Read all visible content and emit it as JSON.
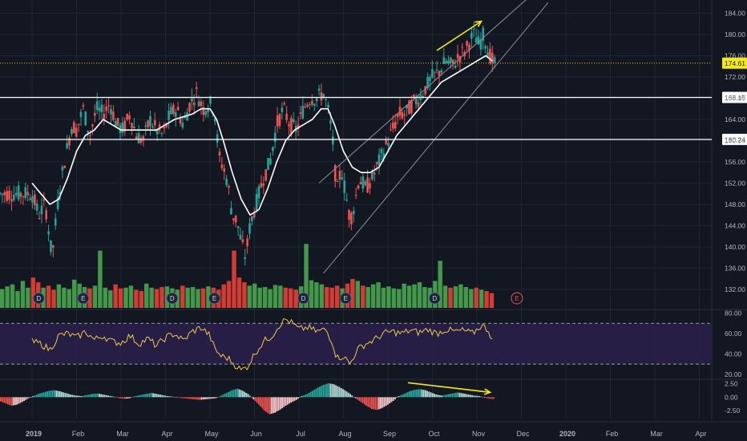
{
  "colors": {
    "background": "#131722",
    "grid": "#1e2433",
    "up": "#26a69a",
    "down": "#ef5350",
    "vol_up": "#4caf50",
    "vol_down": "#f44336",
    "ma": "#ffffff",
    "trendline": "#8a8f9c",
    "price_line": "#f0c419",
    "annotation": "#f5ea14",
    "rsi_line": "#f0c84a",
    "rsi_band": "#2a1f4a",
    "hist_pos_dark": "#26a69a",
    "hist_pos_light": "#b2dfdb",
    "hist_neg_dark": "#ef5350",
    "hist_neg_light": "#ffcdd2",
    "axis_text": "#b2b5be",
    "label_bg_white": "#ffffff",
    "label_bg_yellow": "#f5ea14"
  },
  "chart_data": [
    {
      "type": "candlestick",
      "panel": "price",
      "yticks": [
        132,
        136,
        140,
        144,
        148,
        152,
        156,
        160,
        164,
        168,
        172,
        176,
        180,
        184
      ],
      "ytick_labels": [
        "132.00",
        "136.00",
        "140.00",
        "144.00",
        "148.00",
        "152.00",
        "156.00",
        "160.00",
        "164.00",
        "168.00",
        "172.00",
        "176.00",
        "180.00",
        "184.00"
      ],
      "ylim": [
        128.5,
        186.5
      ],
      "xaxis_labels": [
        "2019",
        "Feb",
        "Mar",
        "Apr",
        "May",
        "Jun",
        "Jul",
        "Aug",
        "Sep",
        "Oct",
        "Nov",
        "Dec",
        "2020",
        "Feb",
        "Mar",
        "Apr"
      ],
      "xaxis_positions_months": [
        0,
        1,
        2,
        3,
        4,
        5,
        6,
        7,
        8,
        9,
        10,
        11,
        12,
        13,
        14,
        15
      ],
      "last_data_month": 10.4,
      "close_path": [
        [
          0.0,
          150
        ],
        [
          0.15,
          146
        ],
        [
          0.3,
          148
        ],
        [
          0.45,
          138
        ],
        [
          0.6,
          150
        ],
        [
          0.75,
          157
        ],
        [
          0.9,
          163
        ],
        [
          1.0,
          162
        ],
        [
          1.15,
          166
        ],
        [
          1.3,
          161
        ],
        [
          1.45,
          166
        ],
        [
          1.6,
          165
        ],
        [
          1.75,
          167
        ],
        [
          1.9,
          163
        ],
        [
          2.05,
          162
        ],
        [
          2.2,
          165
        ],
        [
          2.35,
          161
        ],
        [
          2.5,
          160
        ],
        [
          2.65,
          164
        ],
        [
          2.8,
          162
        ],
        [
          2.95,
          161
        ],
        [
          3.1,
          165
        ],
        [
          3.25,
          166
        ],
        [
          3.4,
          163
        ],
        [
          3.55,
          167
        ],
        [
          3.7,
          169
        ],
        [
          3.85,
          166
        ],
        [
          4.0,
          167
        ],
        [
          4.1,
          166
        ],
        [
          4.2,
          157
        ],
        [
          4.3,
          155
        ],
        [
          4.4,
          152
        ],
        [
          4.5,
          146
        ],
        [
          4.6,
          145
        ],
        [
          4.7,
          141
        ],
        [
          4.8,
          138
        ],
        [
          4.9,
          144
        ],
        [
          5.0,
          147
        ],
        [
          5.1,
          150
        ],
        [
          5.2,
          153
        ],
        [
          5.35,
          156
        ],
        [
          5.5,
          163
        ],
        [
          5.65,
          166
        ],
        [
          5.8,
          163
        ],
        [
          5.95,
          162
        ],
        [
          6.1,
          166
        ],
        [
          6.25,
          168
        ],
        [
          6.4,
          168
        ],
        [
          6.55,
          169
        ],
        [
          6.65,
          166
        ],
        [
          6.75,
          161
        ],
        [
          6.85,
          150
        ],
        [
          6.95,
          155
        ],
        [
          7.05,
          150
        ],
        [
          7.15,
          145
        ],
        [
          7.25,
          148
        ],
        [
          7.35,
          153
        ],
        [
          7.5,
          151
        ],
        [
          7.65,
          153
        ],
        [
          7.8,
          156
        ],
        [
          7.95,
          159
        ],
        [
          8.1,
          162
        ],
        [
          8.25,
          165
        ],
        [
          8.4,
          165
        ],
        [
          8.55,
          167
        ],
        [
          8.7,
          168
        ],
        [
          8.85,
          170
        ],
        [
          9.0,
          172
        ],
        [
          9.15,
          173
        ],
        [
          9.3,
          175
        ],
        [
          9.45,
          174
        ],
        [
          9.6,
          176
        ],
        [
          9.75,
          177
        ],
        [
          9.85,
          179
        ],
        [
          9.95,
          180
        ],
        [
          10.05,
          178
        ],
        [
          10.15,
          180
        ],
        [
          10.25,
          177
        ],
        [
          10.35,
          175
        ],
        [
          10.4,
          174.6
        ]
      ],
      "ma_path": [
        [
          0.0,
          152
        ],
        [
          0.2,
          150
        ],
        [
          0.4,
          148
        ],
        [
          0.6,
          149
        ],
        [
          0.8,
          153
        ],
        [
          1.0,
          158
        ],
        [
          1.2,
          161
        ],
        [
          1.4,
          162
        ],
        [
          1.6,
          164
        ],
        [
          1.8,
          163
        ],
        [
          2.0,
          162
        ],
        [
          2.2,
          162
        ],
        [
          2.4,
          162
        ],
        [
          2.6,
          162
        ],
        [
          2.8,
          162
        ],
        [
          3.0,
          163
        ],
        [
          3.2,
          164
        ],
        [
          3.4,
          164.5
        ],
        [
          3.6,
          165
        ],
        [
          3.8,
          166
        ],
        [
          4.0,
          166
        ],
        [
          4.15,
          164
        ],
        [
          4.3,
          160
        ],
        [
          4.5,
          154
        ],
        [
          4.7,
          149
        ],
        [
          4.9,
          146
        ],
        [
          5.1,
          147
        ],
        [
          5.3,
          151
        ],
        [
          5.5,
          156
        ],
        [
          5.7,
          160
        ],
        [
          5.9,
          162
        ],
        [
          6.1,
          163
        ],
        [
          6.3,
          164
        ],
        [
          6.5,
          166
        ],
        [
          6.65,
          166
        ],
        [
          6.8,
          163
        ],
        [
          7.0,
          158
        ],
        [
          7.2,
          155
        ],
        [
          7.4,
          154
        ],
        [
          7.6,
          154
        ],
        [
          7.8,
          155
        ],
        [
          8.0,
          158
        ],
        [
          8.2,
          161
        ],
        [
          8.4,
          163
        ],
        [
          8.6,
          165
        ],
        [
          8.8,
          167
        ],
        [
          9.0,
          169
        ],
        [
          9.2,
          171
        ],
        [
          9.4,
          172
        ],
        [
          9.6,
          173
        ],
        [
          9.8,
          174
        ],
        [
          10.0,
          175
        ],
        [
          10.2,
          176
        ],
        [
          10.35,
          175
        ]
      ],
      "horizontal_levels": [
        {
          "value": 174.61,
          "label": "174.61",
          "style": "dotted",
          "color_key": "price_line"
        },
        {
          "value": 168.15,
          "label": "168.15",
          "style": "solid",
          "color_key": "ma"
        },
        {
          "value": 160.24,
          "label": "160.24",
          "style": "solid",
          "color_key": "ma"
        }
      ],
      "channel_lines": [
        {
          "from": [
            6.45,
            152
          ],
          "to": [
            11.3,
            188
          ]
        },
        {
          "from": [
            6.55,
            135
          ],
          "to": [
            11.6,
            186
          ]
        }
      ],
      "annotation_arrow": {
        "from": [
          9.1,
          177
        ],
        "to": [
          10.1,
          182.5
        ]
      }
    },
    {
      "type": "bar",
      "panel": "volume",
      "description_free": true,
      "bar_heights_rel": [
        0.28,
        0.32,
        0.35,
        0.25,
        0.4,
        0.3,
        0.45,
        0.38,
        0.3,
        0.33,
        0.27,
        0.35,
        0.3,
        0.28,
        0.42,
        0.36,
        0.31,
        0.29,
        0.33,
        0.85,
        0.3,
        0.26,
        0.35,
        0.29,
        0.3,
        0.33,
        0.27,
        0.25,
        0.36,
        0.3,
        0.28,
        0.31,
        0.32,
        0.29,
        0.27,
        0.33,
        0.3,
        0.31,
        0.28,
        0.29,
        0.32,
        0.3,
        0.27,
        0.35,
        0.4,
        0.85,
        0.45,
        0.38,
        0.33,
        0.36,
        0.3,
        0.31,
        0.28,
        0.34,
        0.33,
        0.3,
        0.29,
        0.27,
        0.32,
        0.95,
        0.41,
        0.38,
        0.35,
        0.31,
        0.3,
        0.33,
        0.29,
        0.36,
        0.43,
        0.4,
        0.33,
        0.31,
        0.35,
        0.38,
        0.3,
        0.32,
        0.29,
        0.28,
        0.36,
        0.33,
        0.35,
        0.38,
        0.31,
        0.3,
        0.4,
        0.7,
        0.33,
        0.3,
        0.32,
        0.35,
        0.31,
        0.28,
        0.3,
        0.27,
        0.25,
        0.22
      ],
      "event_markers": [
        {
          "month": 0.15,
          "letter": "D",
          "kind": "dividend"
        },
        {
          "month": 1.15,
          "letter": "E",
          "kind": "earnings"
        },
        {
          "month": 3.15,
          "letter": "D",
          "kind": "dividend"
        },
        {
          "month": 4.1,
          "letter": "E",
          "kind": "earnings"
        },
        {
          "month": 6.1,
          "letter": "D",
          "kind": "dividend"
        },
        {
          "month": 7.05,
          "letter": "E",
          "kind": "earnings"
        },
        {
          "month": 9.05,
          "letter": "D",
          "kind": "dividend"
        },
        {
          "month": 10.9,
          "letter": "E",
          "kind": "earnings-upcoming"
        }
      ]
    },
    {
      "type": "line",
      "panel": "rsi",
      "yticks": [
        20,
        40,
        60,
        80
      ],
      "ytick_labels": [
        "20.00",
        "40.00",
        "60.00",
        "80.00"
      ],
      "ylim": [
        16,
        82
      ],
      "band": [
        30,
        70
      ],
      "values_path": [
        [
          0.0,
          52
        ],
        [
          0.2,
          50
        ],
        [
          0.4,
          44
        ],
        [
          0.6,
          58
        ],
        [
          0.8,
          60
        ],
        [
          1.0,
          56
        ],
        [
          1.2,
          62
        ],
        [
          1.4,
          54
        ],
        [
          1.6,
          58
        ],
        [
          1.8,
          52
        ],
        [
          2.0,
          51
        ],
        [
          2.2,
          58
        ],
        [
          2.4,
          50
        ],
        [
          2.6,
          55
        ],
        [
          2.8,
          48
        ],
        [
          3.0,
          56
        ],
        [
          3.2,
          60
        ],
        [
          3.4,
          53
        ],
        [
          3.6,
          62
        ],
        [
          3.8,
          66
        ],
        [
          4.0,
          58
        ],
        [
          4.1,
          45
        ],
        [
          4.25,
          38
        ],
        [
          4.4,
          36
        ],
        [
          4.55,
          30
        ],
        [
          4.7,
          24
        ],
        [
          4.85,
          28
        ],
        [
          5.0,
          40
        ],
        [
          5.2,
          52
        ],
        [
          5.4,
          58
        ],
        [
          5.55,
          68
        ],
        [
          5.7,
          74
        ],
        [
          5.85,
          70
        ],
        [
          6.0,
          64
        ],
        [
          6.2,
          66
        ],
        [
          6.4,
          62
        ],
        [
          6.6,
          64
        ],
        [
          6.75,
          52
        ],
        [
          6.85,
          36
        ],
        [
          7.0,
          38
        ],
        [
          7.15,
          30
        ],
        [
          7.3,
          44
        ],
        [
          7.5,
          50
        ],
        [
          7.7,
          54
        ],
        [
          7.9,
          60
        ],
        [
          8.1,
          62
        ],
        [
          8.3,
          60
        ],
        [
          8.5,
          63
        ],
        [
          8.7,
          61
        ],
        [
          8.9,
          64
        ],
        [
          9.1,
          60
        ],
        [
          9.3,
          64
        ],
        [
          9.5,
          62
        ],
        [
          9.7,
          63
        ],
        [
          9.9,
          60
        ],
        [
          10.1,
          68
        ],
        [
          10.25,
          64
        ],
        [
          10.35,
          54
        ]
      ]
    },
    {
      "type": "bar",
      "panel": "histogram",
      "yticks": [
        -2.5,
        0,
        2.5
      ],
      "ytick_labels": [
        "-2.50",
        "0.00",
        "2.50"
      ],
      "ylim": [
        -4,
        3.2
      ],
      "values": [
        -0.8,
        -1.2,
        -1.6,
        -1.4,
        -0.9,
        -0.3,
        0.2,
        0.6,
        0.9,
        1.2,
        1.3,
        1.1,
        0.8,
        0.5,
        0.3,
        0.2,
        0.4,
        0.6,
        0.7,
        0.5,
        0.3,
        0.1,
        -0.2,
        -0.3,
        -0.2,
        0.2,
        0.4,
        0.6,
        0.8,
        0.6,
        0.4,
        0.2,
        0.1,
        -0.1,
        -0.2,
        -0.3,
        -0.4,
        -0.5,
        -0.4,
        -0.3,
        -0.2,
        0.3,
        0.8,
        1.3,
        1.6,
        1.2,
        0.6,
        -0.4,
        -1.4,
        -2.5,
        -3.2,
        -2.9,
        -2.3,
        -1.6,
        -1.0,
        -0.5,
        0.2,
        0.6,
        1.2,
        1.8,
        2.3,
        2.6,
        2.4,
        1.9,
        1.3,
        0.6,
        -0.2,
        -0.9,
        -1.6,
        -2.2,
        -2.4,
        -2.0,
        -1.4,
        -0.7,
        0.2,
        0.6,
        1.1,
        1.4,
        1.5,
        1.3,
        0.9,
        0.5,
        0.3,
        0.5,
        0.7,
        0.9,
        0.7,
        0.5,
        0.3,
        0.2,
        -0.1,
        -0.3
      ],
      "divergence_arrow": {
        "from": [
          8.45,
          2.7
        ],
        "to": [
          10.3,
          0.9
        ]
      }
    }
  ]
}
